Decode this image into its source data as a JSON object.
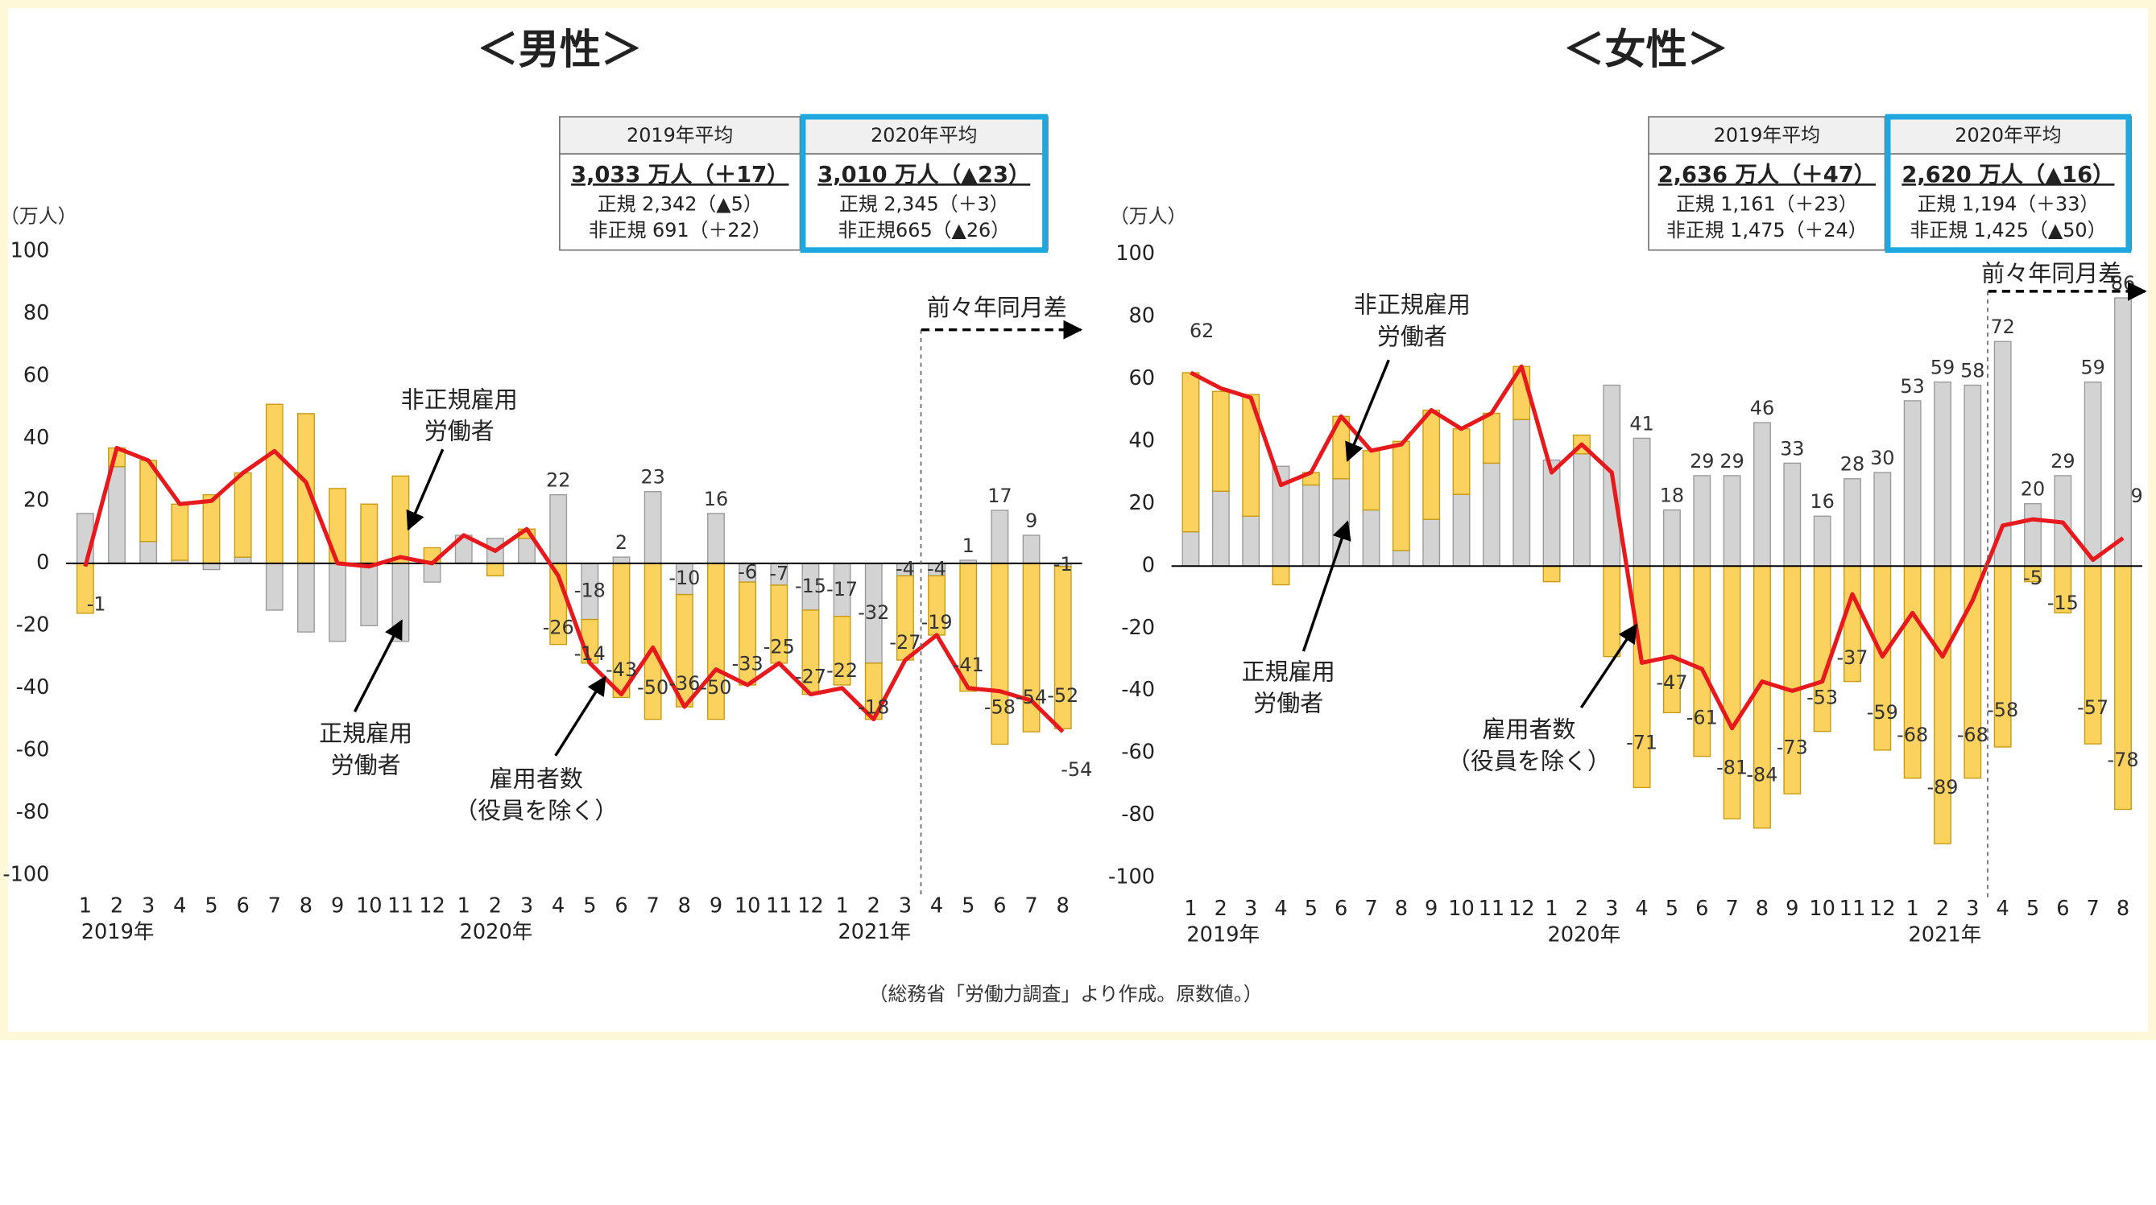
{
  "footer": "（総務省「労働力調査」より作成。原数値。）",
  "chart_data": [
    {
      "type": "stacked_bar_line",
      "title": "＜男性＞",
      "y_unit": "（万人）",
      "categories": [
        "1",
        "2",
        "3",
        "4",
        "5",
        "6",
        "7",
        "8",
        "9",
        "10",
        "11",
        "12",
        "1",
        "2",
        "3",
        "4",
        "5",
        "6",
        "7",
        "8",
        "9",
        "10",
        "11",
        "12",
        "1",
        "2",
        "3",
        "4",
        "5",
        "6",
        "7",
        "8"
      ],
      "year_labels": [
        "2019年",
        "2020年",
        "2021年"
      ],
      "ylim": [
        -100,
        100
      ],
      "yticks": [
        -100,
        -80,
        -60,
        -40,
        -20,
        0,
        20,
        40,
        60,
        80,
        100
      ],
      "series": [
        {
          "type": "bar",
          "color": "#d3d3d3",
          "values": [
            16,
            31,
            7,
            1,
            -2,
            2,
            -15,
            -22,
            -25,
            -20,
            -25,
            -6,
            9,
            8,
            8,
            22,
            -18,
            2,
            23,
            -10,
            16,
            -6,
            -7,
            -15,
            -17,
            -32,
            -4,
            -4,
            1,
            17,
            9,
            -1
          ],
          "value_labels": [
            null,
            null,
            null,
            null,
            null,
            null,
            null,
            null,
            null,
            null,
            null,
            null,
            null,
            null,
            null,
            "22",
            "-18",
            "2",
            "23",
            "-10",
            "16",
            "-6",
            "-7",
            "-15",
            "-17",
            "-32",
            "-4",
            "-4",
            "1",
            "17",
            "9",
            "-1"
          ]
        },
        {
          "type": "bar",
          "color": "#fcd25f",
          "values": [
            -16,
            6,
            26,
            18,
            22,
            27,
            51,
            48,
            24,
            19,
            28,
            5,
            0,
            -4,
            3,
            -26,
            -14,
            -43,
            -50,
            -36,
            -50,
            -33,
            -25,
            -27,
            -22,
            -18,
            -27,
            -19,
            -41,
            -58,
            -54,
            -52
          ],
          "value_labels": [
            null,
            null,
            null,
            null,
            null,
            null,
            null,
            null,
            null,
            null,
            null,
            null,
            null,
            null,
            null,
            "-26",
            "-14",
            "-43",
            "-50",
            "-36",
            "-50",
            "-33",
            "-25",
            "-27",
            "-22",
            "-18",
            "-27",
            "-19",
            "-41",
            "-58",
            "-54",
            "-52"
          ]
        },
        {
          "type": "line",
          "color": "#e8191d",
          "values": [
            -1,
            37,
            33,
            19,
            20,
            29,
            36,
            26,
            0,
            -1,
            2,
            0,
            9,
            4,
            11,
            -4,
            -32,
            -42,
            -27,
            -46,
            -34,
            -39,
            -32,
            -42,
            -40,
            -50,
            -31,
            -23,
            -40,
            -41,
            -44,
            -54
          ],
          "value_labels": [
            "-1",
            null,
            null,
            null,
            null,
            null,
            null,
            null,
            null,
            null,
            null,
            null,
            null,
            null,
            null,
            null,
            null,
            null,
            null,
            null,
            null,
            null,
            null,
            null,
            null,
            null,
            null,
            null,
            null,
            null,
            null,
            "-54"
          ]
        }
      ],
      "annotations": [
        {
          "lines": [
            "非正規雇用",
            "労働者"
          ]
        },
        {
          "lines": [
            "正規雇用",
            "労働者"
          ]
        },
        {
          "lines": [
            "雇用者数",
            "（役員を除く）"
          ]
        }
      ],
      "comparison_note": {
        "label": "前々年同月差",
        "from_index": 27
      },
      "summary": {
        "columns": [
          {
            "header": "2019年平均",
            "total": "3,033 万人（＋17）",
            "regular": "正規 2,342（▲5）",
            "nonregular": "非正規 691（＋22）"
          },
          {
            "header": "2020年平均",
            "total": "3,010 万人（▲23）",
            "regular": "正規 2,345（＋3）",
            "nonregular": "非正規665（▲26）"
          }
        ]
      }
    },
    {
      "type": "stacked_bar_line",
      "title": "＜女性＞",
      "y_unit": "（万人）",
      "categories": [
        "1",
        "2",
        "3",
        "4",
        "5",
        "6",
        "7",
        "8",
        "9",
        "10",
        "11",
        "12",
        "1",
        "2",
        "3",
        "4",
        "5",
        "6",
        "7",
        "8",
        "9",
        "10",
        "11",
        "12",
        "1",
        "2",
        "3",
        "4",
        "5",
        "6",
        "7",
        "8"
      ],
      "year_labels": [
        "2019年",
        "2020年",
        "2021年"
      ],
      "ylim": [
        -100,
        100
      ],
      "yticks": [
        -100,
        -80,
        -60,
        -40,
        -20,
        0,
        20,
        40,
        60,
        80,
        100
      ],
      "series": [
        {
          "type": "bar",
          "color": "#d3d3d3",
          "values": [
            11,
            24,
            16,
            32,
            26,
            28,
            18,
            5,
            15,
            23,
            33,
            47,
            34,
            36,
            58,
            41,
            18,
            29,
            29,
            46,
            33,
            16,
            28,
            30,
            53,
            59,
            58,
            72,
            20,
            29,
            59,
            86
          ],
          "value_labels": [
            null,
            null,
            null,
            null,
            null,
            null,
            null,
            null,
            null,
            null,
            null,
            null,
            null,
            null,
            null,
            "41",
            "18",
            "29",
            "29",
            "46",
            "33",
            "16",
            "28",
            "30",
            "53",
            "59",
            "58",
            "72",
            "20",
            "29",
            "59",
            "86"
          ]
        },
        {
          "type": "bar",
          "color": "#fcd25f",
          "values": [
            51,
            32,
            39,
            -6,
            4,
            20,
            19,
            35,
            35,
            21,
            16,
            17,
            -5,
            6,
            -29,
            -71,
            -47,
            -61,
            -81,
            -84,
            -73,
            -53,
            -37,
            -59,
            -68,
            -89,
            -68,
            -58,
            -5,
            -15,
            -57,
            -78
          ],
          "value_labels": [
            null,
            null,
            null,
            null,
            null,
            null,
            null,
            null,
            null,
            null,
            null,
            null,
            null,
            null,
            null,
            "-71",
            "-47",
            "-61",
            "-81",
            "-84",
            "-73",
            "-53",
            "-37",
            "-59",
            "-68",
            "-89",
            "-68",
            "-58",
            "-5",
            "-15",
            "-57",
            "-78"
          ]
        },
        {
          "type": "line",
          "color": "#e8191d",
          "values": [
            62,
            57,
            54,
            26,
            30,
            48,
            37,
            39,
            50,
            44,
            49,
            64,
            30,
            39,
            30,
            -31,
            -29,
            -33,
            -52,
            -37,
            -40,
            -37,
            -9,
            -29,
            -15,
            -29,
            -11,
            13,
            15,
            14,
            2,
            9
          ],
          "value_labels": [
            "62",
            null,
            null,
            null,
            null,
            null,
            null,
            null,
            null,
            null,
            null,
            null,
            null,
            null,
            null,
            null,
            null,
            null,
            null,
            null,
            null,
            null,
            null,
            null,
            null,
            null,
            null,
            null,
            null,
            null,
            null,
            "9"
          ]
        }
      ],
      "annotations": [
        {
          "lines": [
            "非正規雇用",
            "労働者"
          ]
        },
        {
          "lines": [
            "正規雇用",
            "労働者"
          ]
        },
        {
          "lines": [
            "雇用者数",
            "（役員を除く）"
          ]
        }
      ],
      "comparison_note": {
        "label": "前々年同月差",
        "from_index": 27
      },
      "summary": {
        "columns": [
          {
            "header": "2019年平均",
            "total": "2,636 万人（＋47）",
            "regular": "正規 1,161（＋23）",
            "nonregular": "非正規 1,475（＋24）"
          },
          {
            "header": "2020年平均",
            "total": "2,620 万人（▲16）",
            "regular": "正規 1,194（＋33）",
            "nonregular": "非正規 1,425（▲50）"
          }
        ]
      }
    }
  ]
}
